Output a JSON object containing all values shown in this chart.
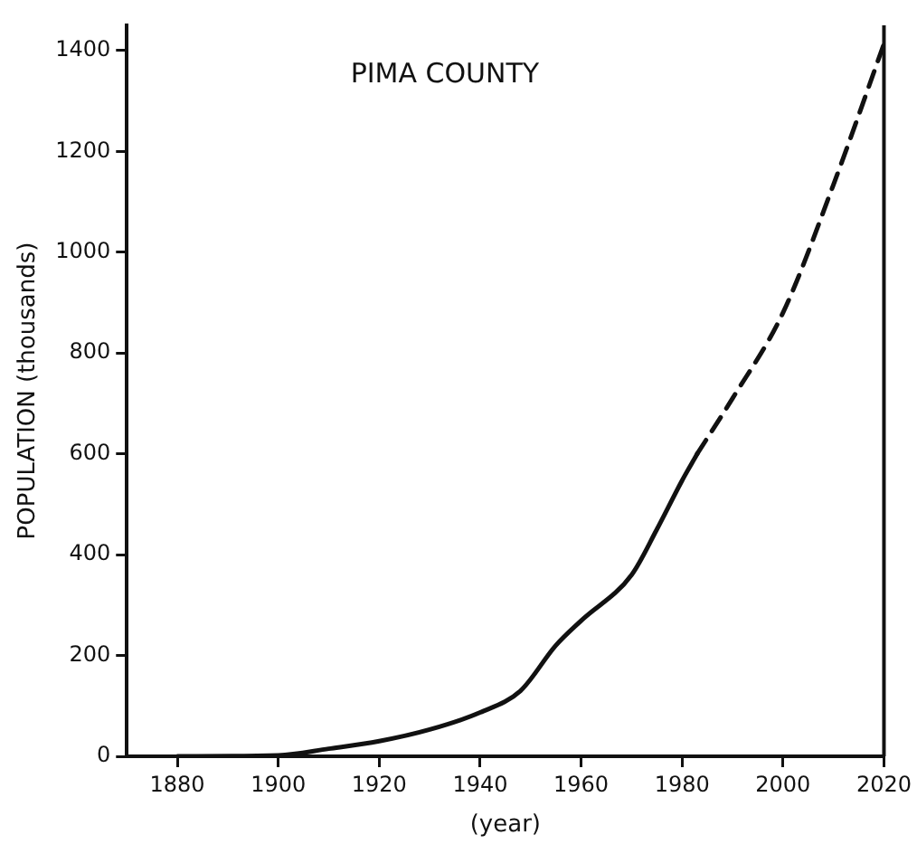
{
  "chart_data": {
    "type": "line",
    "title": "PIMA COUNTY",
    "xlabel": "(year)",
    "ylabel": "POPULATION (thousands)",
    "xlim": [
      1870,
      2020
    ],
    "xticks": [
      1880,
      1900,
      1920,
      1940,
      1960,
      1980,
      2000,
      2020
    ],
    "ylim": [
      0,
      1450
    ],
    "yticks": [
      0,
      200,
      400,
      600,
      800,
      1000,
      1200,
      1400
    ],
    "grid": false,
    "legend": false,
    "marker": "none",
    "series": [
      {
        "color": "#111111",
        "line_style": "solid",
        "x": [
          1880,
          1900,
          1910,
          1920,
          1930,
          1940,
          1948,
          1955,
          1960,
          1970,
          1975,
          1980,
          1983
        ],
        "values": [
          0,
          2,
          15,
          30,
          53,
          87,
          130,
          220,
          269,
          360,
          450,
          547,
          600
        ]
      },
      {
        "color": "#111111",
        "line_style": "dashed",
        "x": [
          1983,
          1990,
          2000,
          2010,
          2020
        ],
        "values": [
          600,
          710,
          880,
          1134,
          1413
        ]
      }
    ]
  }
}
